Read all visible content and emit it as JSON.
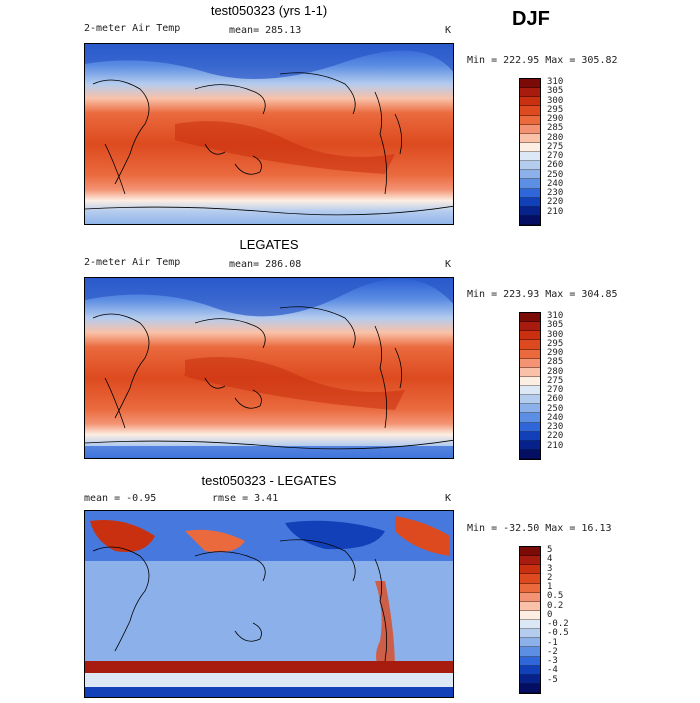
{
  "season": "DJF",
  "panels": [
    {
      "title": "test050323 (yrs 1-1)",
      "left_label": "2-meter Air Temp",
      "center_label": "mean= 285.13",
      "units": "K",
      "minmax": "Min = 222.95 Max = 305.82",
      "colorbar": {
        "labels": [
          "310",
          "305",
          "300",
          "295",
          "290",
          "285",
          "280",
          "275",
          "270",
          "260",
          "250",
          "240",
          "230",
          "220",
          "210"
        ],
        "colors": [
          "#7a0b07",
          "#a81b0f",
          "#c9300f",
          "#dd4a1f",
          "#ea6a3e",
          "#f39373",
          "#f9c1a8",
          "#fdeee3",
          "#dce8f6",
          "#b4ccee",
          "#8cb1ea",
          "#5c8ee3",
          "#2f66d9",
          "#1240b8",
          "#08228c",
          "#040e63"
        ]
      },
      "kind": "temp"
    },
    {
      "title": "LEGATES",
      "left_label": "2-meter Air Temp",
      "center_label": "mean= 286.08",
      "units": "K",
      "minmax": "Min = 223.93 Max = 304.85",
      "colorbar": {
        "labels": [
          "310",
          "305",
          "300",
          "295",
          "290",
          "285",
          "280",
          "275",
          "270",
          "260",
          "250",
          "240",
          "230",
          "220",
          "210"
        ],
        "colors": [
          "#7a0b07",
          "#a81b0f",
          "#c9300f",
          "#dd4a1f",
          "#ea6a3e",
          "#f39373",
          "#f9c1a8",
          "#fdeee3",
          "#dce8f6",
          "#b4ccee",
          "#8cb1ea",
          "#5c8ee3",
          "#2f66d9",
          "#1240b8",
          "#08228c",
          "#040e63"
        ]
      },
      "kind": "temp"
    },
    {
      "title": "test050323 - LEGATES",
      "left_label": "mean =   -0.95",
      "center_label": "rmse =    3.41",
      "units": "K",
      "minmax": "Min = -32.50 Max =  16.13",
      "colorbar": {
        "labels": [
          "5",
          "4",
          "3",
          "2",
          "1",
          "0.5",
          "0.2",
          "0",
          "-0.2",
          "-0.5",
          "-1",
          "-2",
          "-3",
          "-4",
          "-5"
        ],
        "colors": [
          "#7a0b07",
          "#a81b0f",
          "#c9300f",
          "#dd4a1f",
          "#ea6a3e",
          "#f39373",
          "#f9c1a8",
          "#fdeee3",
          "#dce8f6",
          "#b4ccee",
          "#8cb1ea",
          "#5c8ee3",
          "#2f66d9",
          "#1240b8",
          "#08228c",
          "#040e63"
        ]
      },
      "kind": "diff"
    }
  ]
}
